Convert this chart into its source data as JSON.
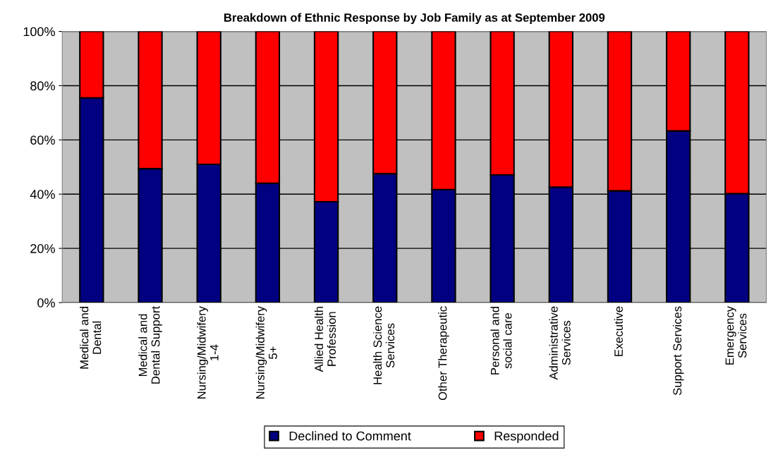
{
  "chart_data": {
    "type": "bar",
    "stacked": true,
    "title": "Breakdown of Ethnic Response by Job Family as at September 2009",
    "categories": [
      "Medical and\nDental",
      "Medical and\nDental Support",
      "Nursing/Midwifery\n1-4",
      "Nursing/Midwifery\n5+",
      "Allied Health\nProfession",
      "Health Science\nServices",
      "Other Therapeutic",
      "Personal and\nsocial care",
      "Administrative\nServices",
      "Executive",
      "Support Services",
      "Emergency\nServices"
    ],
    "series": [
      {
        "name": "Declined to Comment",
        "color": "#000080",
        "values": [
          75.5,
          49.4,
          51.0,
          44.0,
          37.2,
          47.5,
          41.7,
          47.1,
          42.6,
          41.2,
          63.3,
          40.2
        ]
      },
      {
        "name": "Responded",
        "color": "#ff0000",
        "values": [
          24.5,
          50.6,
          49.0,
          56.0,
          62.8,
          52.5,
          58.3,
          52.9,
          57.4,
          58.8,
          36.7,
          59.8
        ]
      }
    ],
    "ylim": [
      0,
      100
    ],
    "yticks": [
      {
        "value": 0,
        "label": "0%"
      },
      {
        "value": 20,
        "label": "20%"
      },
      {
        "value": 40,
        "label": "40%"
      },
      {
        "value": 60,
        "label": "60%"
      },
      {
        "value": 80,
        "label": "80%"
      },
      {
        "value": 100,
        "label": "100%"
      }
    ],
    "grid": "y",
    "legend": "bottom"
  }
}
